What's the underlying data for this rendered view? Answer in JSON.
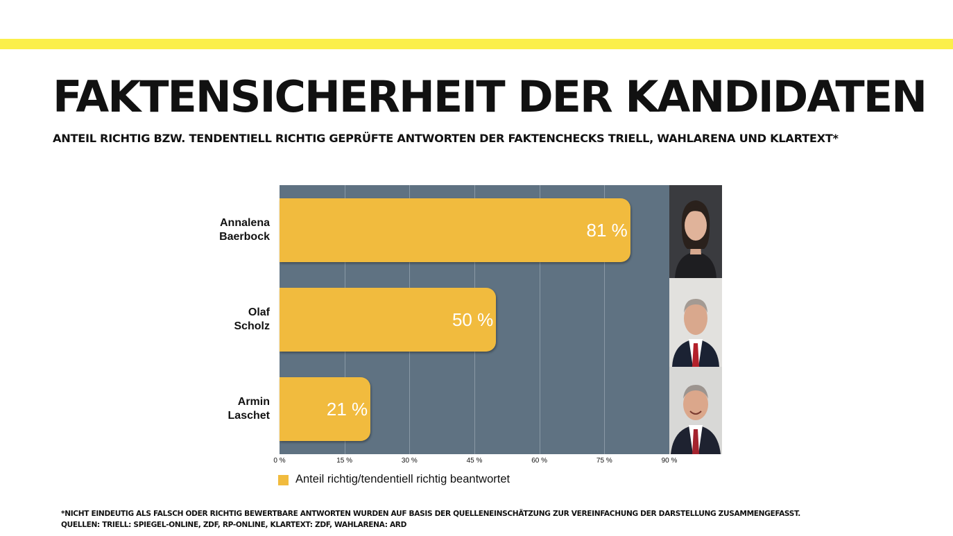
{
  "title": "FAKTENSICHERHEIT DER KANDIDATEN",
  "subtitle": "ANTEIL RICHTIG BZW. TENDENTIELL RICHTIG GEPRÜFTE ANTWORTEN DER FAKTENCHECKS TRIELL, WAHLARENA UND KLARTEXT*",
  "chart_data": {
    "type": "bar",
    "orientation": "horizontal",
    "categories": [
      [
        "Annalena",
        "Baerbock"
      ],
      [
        "Olaf",
        "Scholz"
      ],
      [
        "Armin",
        "Laschet"
      ]
    ],
    "values": [
      81,
      50,
      21
    ],
    "value_labels": [
      "81 %",
      "50 %",
      "21 %"
    ],
    "xlim": [
      0,
      90
    ],
    "ticks": [
      0,
      15,
      30,
      45,
      60,
      75,
      90
    ],
    "tick_labels": [
      "0 %",
      "15 %",
      "30 %",
      "45 %",
      "60 %",
      "75 %",
      "90 %"
    ],
    "legend": "Anteil richtig/tendentiell richtig beantwortet",
    "bar_color": "#f1bb3e",
    "background_color": "#5f7282",
    "grid": true,
    "legend_position": "bottom-left"
  },
  "photos": [
    "woman-portrait",
    "man-portrait-grey-hair",
    "man-portrait-smiling"
  ],
  "footnotes": [
    "*NICHT EINDEUTIG ALS FALSCH ODER RICHTIG BEWERTBARE ANTWORTEN WURDEN AUF BASIS DER QUELLENEINSCHÄTZUNG ZUR VEREINFACHUNG DER DARSTELLUNG ZUSAMMENGEFASST.",
    "QUELLEN: TRIELL: SPIEGEL-ONLINE, ZDF, RP-ONLINE, KLARTEXT: ZDF, WAHLARENA: ARD"
  ]
}
